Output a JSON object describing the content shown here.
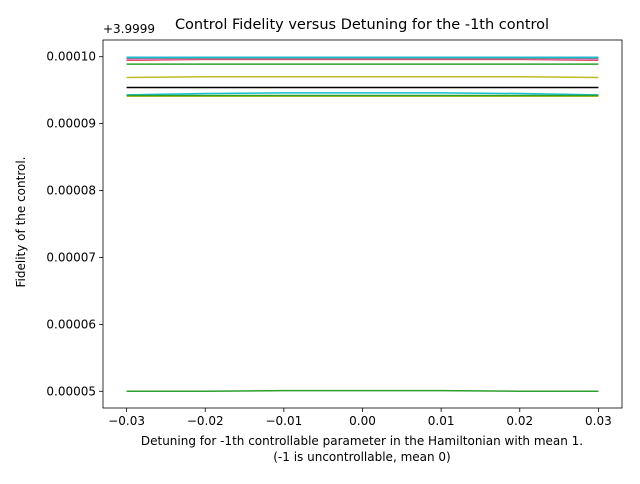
{
  "chart_data": {
    "type": "line",
    "title": "Control Fidelity versus Detuning for the -1th control",
    "xlabel": "Detuning for -1th controllable parameter in the Hamiltonian with mean 1.",
    "xlabel_line2": "(-1 is uncontrollable, mean 0)",
    "ylabel": "Fidelity of the control.",
    "y_offset_label": "+3.9999",
    "xlim": [
      -0.033,
      0.033
    ],
    "ylim": [
      4.75e-05,
      0.0001025
    ],
    "x_ticks": [
      -0.03,
      -0.02,
      -0.01,
      0.0,
      0.01,
      0.02,
      0.03
    ],
    "x_tick_labels": [
      "−0.03",
      "−0.02",
      "−0.01",
      "0.00",
      "0.01",
      "0.02",
      "0.03"
    ],
    "y_ticks": [
      5e-05,
      6e-05,
      7e-05,
      8e-05,
      9e-05,
      0.0001
    ],
    "y_tick_labels": [
      "0.00005",
      "0.00006",
      "0.00007",
      "0.00008",
      "0.00009",
      "0.00010"
    ],
    "grid": false,
    "legend": "none",
    "x": [
      -0.03,
      -0.02,
      -0.01,
      0.0,
      0.01,
      0.02,
      0.03
    ],
    "series": [
      {
        "color": "#1f77b4",
        "values": [
          9.99e-05,
          9.99e-05,
          9.99e-05,
          9.99e-05,
          9.99e-05,
          9.99e-05,
          9.99e-05
        ]
      },
      {
        "color": "#ff7f0e",
        "values": [
          9.96e-05,
          9.97e-05,
          9.97e-05,
          9.97e-05,
          9.97e-05,
          9.97e-05,
          9.96e-05
        ]
      },
      {
        "color": "#2ca02c",
        "values": [
          9.89e-05,
          9.89e-05,
          9.89e-05,
          9.89e-05,
          9.89e-05,
          9.89e-05,
          9.89e-05
        ]
      },
      {
        "color": "#d62728",
        "values": [
          9.95e-05,
          9.96e-05,
          9.96e-05,
          9.96e-05,
          9.96e-05,
          9.96e-05,
          9.95e-05
        ]
      },
      {
        "color": "#9467bd",
        "values": [
          9.98e-05,
          9.98e-05,
          9.98e-05,
          9.98e-05,
          9.98e-05,
          9.98e-05,
          9.98e-05
        ]
      },
      {
        "color": "#8c564b",
        "values": [
          9.97e-05,
          9.98e-05,
          9.98e-05,
          9.98e-05,
          9.98e-05,
          9.98e-05,
          9.97e-05
        ]
      },
      {
        "color": "#e377c2",
        "values": [
          9.96e-05,
          9.97e-05,
          9.97e-05,
          9.97e-05,
          9.97e-05,
          9.97e-05,
          9.96e-05
        ]
      },
      {
        "color": "#7f7f7f",
        "values": [
          9.98e-05,
          9.98e-05,
          9.98e-05,
          9.98e-05,
          9.98e-05,
          9.98e-05,
          9.98e-05
        ]
      },
      {
        "color": "#bcbd22",
        "values": [
          9.69e-05,
          9.7e-05,
          9.7e-05,
          9.7e-05,
          9.7e-05,
          9.7e-05,
          9.69e-05
        ]
      },
      {
        "color": "#bcbd22",
        "values": [
          9.41e-05,
          9.41e-05,
          9.41e-05,
          9.41e-05,
          9.41e-05,
          9.41e-05,
          9.41e-05
        ]
      },
      {
        "color": "#17becf",
        "values": [
          9.43e-05,
          9.45e-05,
          9.46e-05,
          9.46e-05,
          9.46e-05,
          9.45e-05,
          9.43e-05
        ]
      },
      {
        "color": "#2ca02c",
        "values": [
          9.42e-05,
          9.42e-05,
          9.42e-05,
          9.42e-05,
          9.42e-05,
          9.42e-05,
          9.42e-05
        ]
      },
      {
        "color": "#17becf",
        "values": [
          9.99e-05,
          9.99e-05,
          9.99e-05,
          9.99e-05,
          9.99e-05,
          9.99e-05,
          9.99e-05
        ]
      },
      {
        "color": "#2ca02c",
        "values": [
          5e-05,
          5e-05,
          5.01e-05,
          5.01e-05,
          5.01e-05,
          5e-05,
          5e-05
        ]
      },
      {
        "color": "#000000",
        "values": [
          9.54e-05,
          9.54e-05,
          9.54e-05,
          9.54e-05,
          9.54e-05,
          9.54e-05,
          9.54e-05
        ]
      }
    ]
  }
}
